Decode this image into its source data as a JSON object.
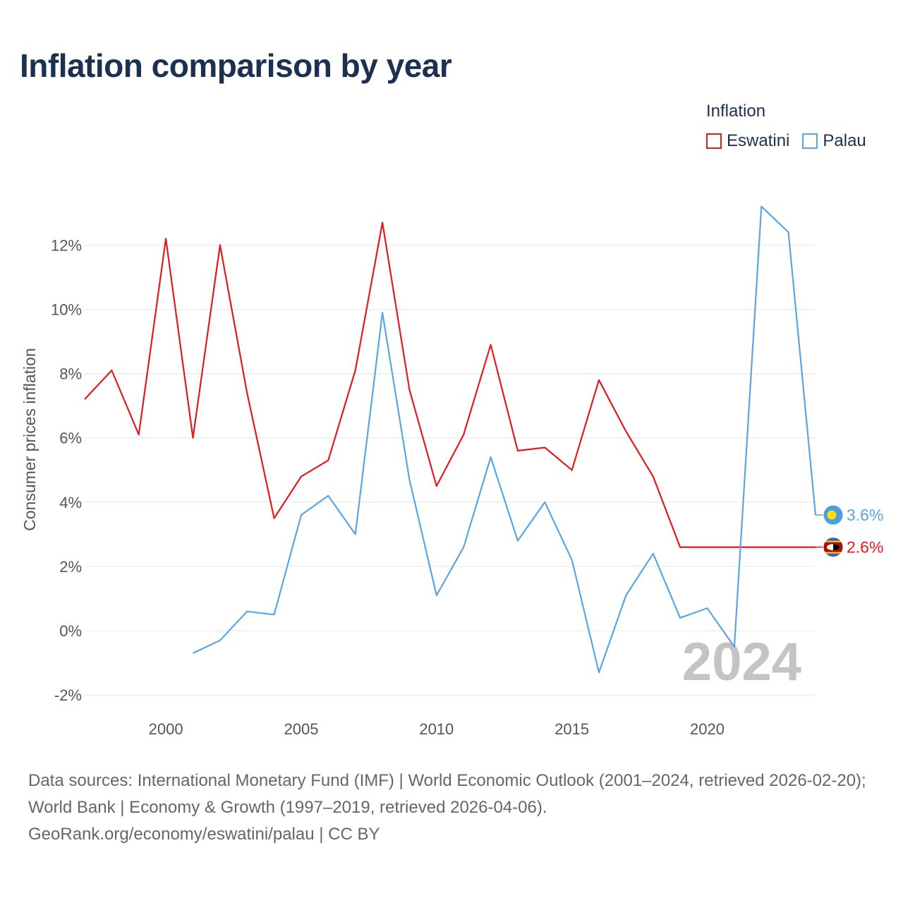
{
  "title": "Inflation comparison by year",
  "legend": {
    "title": "Inflation",
    "items": [
      {
        "name": "Eswatini",
        "color": "#e31a1c"
      },
      {
        "name": "Palau",
        "color": "#5aa5e6"
      }
    ]
  },
  "chart_data": {
    "type": "line",
    "title": "Inflation comparison by year",
    "xlabel": "",
    "ylabel": "Consumer prices inflation",
    "xlim": [
      1997,
      2024
    ],
    "ylim": [
      -2.5,
      13.5
    ],
    "yticks": [
      -2,
      0,
      2,
      4,
      6,
      8,
      10,
      12
    ],
    "ytick_labels": [
      "-2%",
      "0%",
      "2%",
      "4%",
      "6%",
      "8%",
      "10%",
      "12%"
    ],
    "xticks": [
      2000,
      2005,
      2010,
      2015,
      2020
    ],
    "xtick_labels": [
      "2000",
      "2005",
      "2010",
      "2015",
      "2020"
    ],
    "grid": true,
    "year_watermark": "2024",
    "series": [
      {
        "name": "Eswatini",
        "color": "#e31a1c",
        "end_label": "2.6%",
        "x": [
          1997,
          1998,
          1999,
          2000,
          2001,
          2002,
          2003,
          2004,
          2005,
          2006,
          2007,
          2008,
          2009,
          2010,
          2011,
          2012,
          2013,
          2014,
          2015,
          2016,
          2017,
          2018,
          2019,
          2024
        ],
        "values": [
          7.2,
          8.1,
          6.1,
          12.2,
          6.0,
          12.0,
          7.4,
          3.5,
          4.8,
          5.3,
          8.1,
          12.7,
          7.5,
          4.5,
          6.1,
          8.9,
          5.6,
          5.7,
          5.0,
          7.8,
          6.2,
          4.8,
          2.6,
          2.6
        ]
      },
      {
        "name": "Palau",
        "color": "#5aa5e6",
        "end_label": "3.6%",
        "x": [
          2001,
          2002,
          2003,
          2004,
          2005,
          2006,
          2007,
          2008,
          2009,
          2010,
          2011,
          2012,
          2013,
          2014,
          2015,
          2016,
          2017,
          2018,
          2019,
          2020,
          2021,
          2022,
          2023,
          2024
        ],
        "values": [
          -0.7,
          -0.3,
          0.6,
          0.5,
          3.6,
          4.2,
          3.0,
          9.9,
          4.7,
          1.1,
          2.6,
          5.4,
          2.8,
          4.0,
          2.2,
          -1.3,
          1.1,
          2.4,
          0.4,
          0.7,
          -0.5,
          13.2,
          12.4,
          3.6
        ]
      }
    ]
  },
  "footer": {
    "line1": "Data sources: International Monetary Fund (IMF) | World Economic Outlook (2001–2024, retrieved 2026-02-20); World Bank | Economy & Growth (1997–2019, retrieved 2026-04-06).",
    "line2": "GeoRank.org/economy/eswatini/palau | CC BY"
  }
}
